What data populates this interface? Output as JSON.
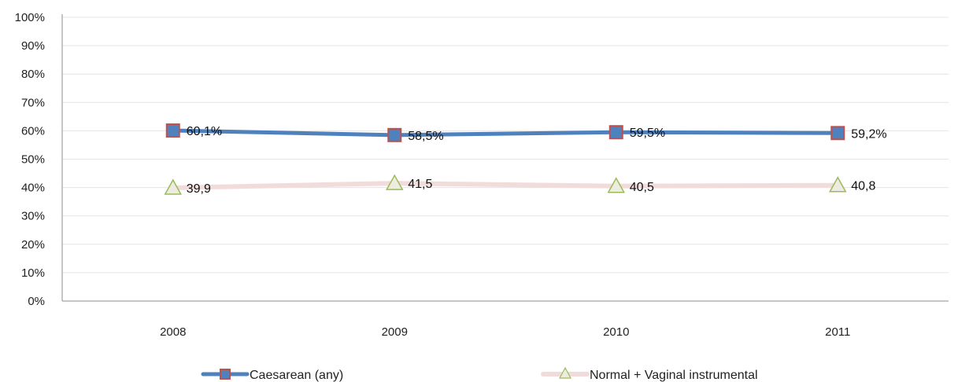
{
  "chart_data": {
    "type": "line",
    "categories": [
      "2008",
      "2009",
      "2010",
      "2011"
    ],
    "ylim": [
      0,
      100
    ],
    "y_ticks": [
      "0%",
      "10%",
      "20%",
      "30%",
      "40%",
      "50%",
      "60%",
      "70%",
      "80%",
      "90%",
      "100%"
    ],
    "grid": true,
    "legend_position": "bottom",
    "series": [
      {
        "name": "Caesarean (any)",
        "values": [
          60.1,
          58.5,
          59.5,
          59.2
        ],
        "labels": [
          "60,1%",
          "58,5%",
          "59,5%",
          "59,2%"
        ],
        "color": "#4F81BD",
        "marker": "square",
        "marker_fill": "#4F81BD",
        "marker_edge": "#C0504D"
      },
      {
        "name": "Normal + Vaginal instrumental",
        "values": [
          39.9,
          41.5,
          40.5,
          40.8
        ],
        "labels": [
          "39,9",
          "41,5",
          "40,5",
          "40,8"
        ],
        "color": "#F2DCDB",
        "marker": "triangle",
        "marker_fill": "#EEECE1",
        "marker_edge": "#9BBB59"
      }
    ]
  }
}
